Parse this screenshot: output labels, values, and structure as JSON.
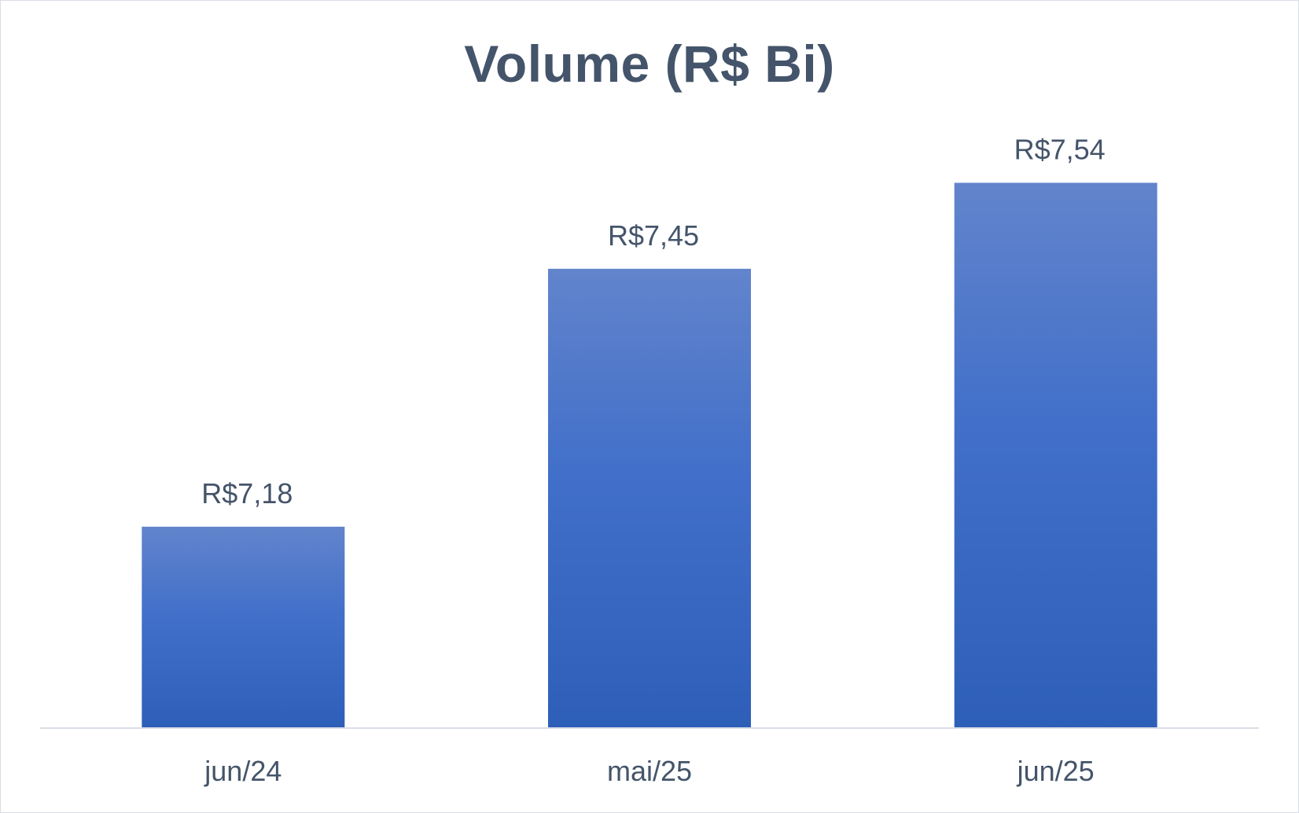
{
  "chart_data": {
    "type": "bar",
    "title": "Volume (R$ Bi)",
    "categories": [
      "jun/24",
      "mai/25",
      "jun/25"
    ],
    "values": [
      7.18,
      7.45,
      7.54
    ],
    "data_labels": [
      "R$7,18",
      "R$7,45",
      "R$7,54"
    ],
    "xlabel": "",
    "ylabel": "",
    "ylim": [
      6.97,
      7.64
    ],
    "grid": false,
    "legend": "none",
    "colors": {
      "bar_top": "#6284CC",
      "bar_mid": "#416FC9",
      "bar_bottom": "#2E5FB8",
      "text": "#44546A",
      "axis": "#D9DDE6"
    }
  }
}
